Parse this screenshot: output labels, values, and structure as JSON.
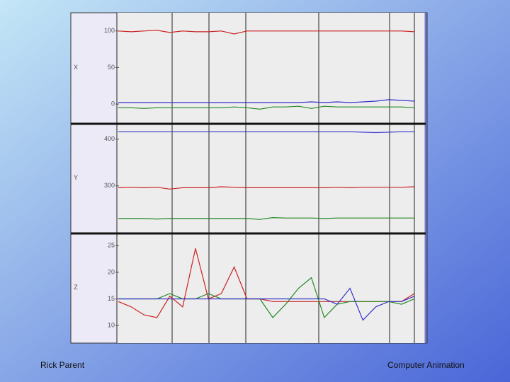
{
  "chart_data": [
    {
      "type": "line",
      "ylabel": "X",
      "ylim": [
        -27,
        125
      ],
      "yticks": [
        0,
        50,
        100
      ],
      "series": [
        {
          "color": "#cc2222",
          "values": [
            100,
            99,
            100,
            101,
            98,
            100,
            99,
            99,
            100,
            96,
            100,
            100,
            100,
            100,
            100,
            100,
            100,
            100,
            100,
            100,
            100,
            100,
            100,
            99
          ]
        },
        {
          "color": "#3333cc",
          "values": [
            2,
            2,
            2,
            2,
            2,
            2,
            2,
            2,
            2,
            2,
            2,
            2,
            2,
            2,
            2,
            3,
            2,
            3,
            2,
            3,
            4,
            6,
            5,
            4
          ]
        },
        {
          "color": "#228822",
          "values": [
            -5,
            -5,
            -6,
            -5,
            -5,
            -5,
            -5,
            -5,
            -5,
            -4,
            -5,
            -7,
            -4,
            -4,
            -3,
            -6,
            -3,
            -4,
            -4,
            -4,
            -4,
            -4,
            -4,
            -5
          ]
        }
      ]
    },
    {
      "type": "line",
      "ylabel": "Y",
      "ylim": [
        198,
        433
      ],
      "yticks": [
        300,
        400
      ],
      "series": [
        {
          "color": "#cc2222",
          "values": [
            296,
            297,
            296,
            297,
            293,
            296,
            296,
            296,
            298,
            297,
            296,
            296,
            296,
            296,
            296,
            296,
            296,
            297,
            296,
            297,
            297,
            297,
            297,
            298
          ]
        },
        {
          "color": "#3333cc",
          "values": [
            416,
            416,
            416,
            416,
            416,
            416,
            416,
            416,
            416,
            416,
            416,
            416,
            416,
            416,
            416,
            416,
            416,
            416,
            416,
            415,
            414,
            415,
            416,
            416
          ]
        },
        {
          "color": "#228822",
          "values": [
            230,
            230,
            230,
            229,
            230,
            230,
            230,
            230,
            230,
            230,
            230,
            228,
            232,
            231,
            231,
            231,
            230,
            231,
            231,
            231,
            231,
            231,
            231,
            231
          ]
        }
      ]
    },
    {
      "type": "line",
      "ylabel": "Z",
      "ylim": [
        6.7,
        27.3
      ],
      "yticks": [
        10,
        15,
        20,
        25
      ],
      "series": [
        {
          "color": "#cc2222",
          "values": [
            14.5,
            13.5,
            12,
            11.5,
            15.5,
            13.5,
            24.5,
            15,
            16,
            21,
            15,
            15,
            14.5,
            14.5,
            14.5,
            14.5,
            14.5,
            14.5,
            14.5,
            14.5,
            14.5,
            14.5,
            14.5,
            16
          ]
        },
        {
          "color": "#228822",
          "values": [
            15,
            15,
            15,
            15,
            16,
            15,
            15,
            16,
            15,
            15,
            15,
            15,
            11.5,
            14,
            17,
            19,
            11.5,
            14,
            14.5,
            14.5,
            14.5,
            14.5,
            14,
            15
          ]
        },
        {
          "color": "#3333cc",
          "values": [
            15,
            15,
            15,
            15,
            15,
            15,
            15,
            15,
            15,
            15,
            15,
            15,
            15,
            15,
            15,
            15,
            15,
            14,
            17,
            11,
            13.5,
            14.5,
            14.5,
            15.5
          ]
        }
      ]
    }
  ],
  "footer": {
    "left": "Rick Parent",
    "right": "Computer Animation"
  }
}
